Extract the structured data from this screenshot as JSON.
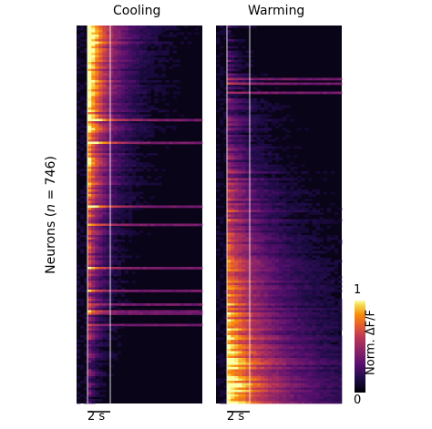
{
  "figure": {
    "ylabel_prefix": "Neurons (",
    "ylabel_n": "n",
    "ylabel_suffix": " = 746)",
    "neuron_count": 746
  },
  "panels": [
    {
      "title": "Cooling",
      "scale_bar_label": "2 s",
      "scale_bar_seconds": 2
    },
    {
      "title": "Warming",
      "scale_bar_label": "2 s",
      "scale_bar_seconds": 2
    }
  ],
  "colorbar": {
    "label": "Norm. ΔF/F",
    "min_label": "0",
    "max_label": "1",
    "min": 0,
    "max": 1,
    "colormap": "inferno"
  },
  "chart_data": [
    {
      "type": "heatmap",
      "title": "Cooling",
      "ylabel": "Neurons (n = 746)",
      "rows": 746,
      "value_range": [
        0,
        1
      ],
      "description_of_values": "each row is one neuron; response rises right after stimulus onset and decays within ~2 s"
    },
    {
      "type": "heatmap",
      "title": "Warming",
      "ylabel": "Neurons (n = 746)",
      "rows": 746,
      "value_range": [
        0,
        1
      ],
      "description_of_values": "each row is one neuron; response is strongest in the lower rows and extends several seconds"
    }
  ]
}
